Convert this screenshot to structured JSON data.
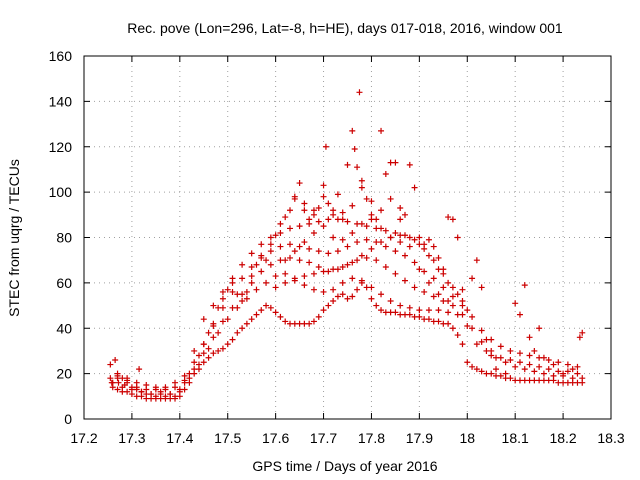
{
  "chart_data": {
    "type": "scatter",
    "title": "Rec. pove (Lon=296, Lat=-8, h=HE), days 017-018, 2016, window 001",
    "xlabel": "GPS time / Days of year 2016",
    "ylabel": "STEC from uqrg / TECUs",
    "xlim": [
      17.2,
      18.3
    ],
    "ylim": [
      0,
      160
    ],
    "xticks": [
      "17.2",
      "17.3",
      "17.4",
      "17.5",
      "17.6",
      "17.7",
      "17.8",
      "17.9",
      "18",
      "18.1",
      "18.2",
      "18.3"
    ],
    "xtick_values": [
      17.2,
      17.3,
      17.4,
      17.5,
      17.6,
      17.7,
      17.8,
      17.9,
      18.0,
      18.1,
      18.2,
      18.3
    ],
    "yticks": [
      "0",
      "20",
      "40",
      "60",
      "80",
      "100",
      "120",
      "140",
      "160"
    ],
    "ytick_values": [
      0,
      20,
      40,
      60,
      80,
      100,
      120,
      140,
      160
    ],
    "grid": true,
    "marker": "plus",
    "color": "#cc0000",
    "points": [
      [
        17.255,
        24
      ],
      [
        17.255,
        18
      ],
      [
        17.258,
        16
      ],
      [
        17.265,
        26
      ],
      [
        17.27,
        19
      ],
      [
        17.272,
        16
      ],
      [
        17.28,
        18
      ],
      [
        17.285,
        15
      ],
      [
        17.29,
        17
      ],
      [
        17.3,
        14
      ],
      [
        17.31,
        13
      ],
      [
        17.315,
        22
      ],
      [
        17.32,
        12
      ],
      [
        17.33,
        11
      ],
      [
        17.34,
        11
      ],
      [
        17.35,
        10
      ],
      [
        17.36,
        12
      ],
      [
        17.37,
        10
      ],
      [
        17.38,
        11
      ],
      [
        17.39,
        10
      ],
      [
        17.4,
        12
      ],
      [
        17.41,
        16
      ],
      [
        17.42,
        20
      ],
      [
        17.43,
        30
      ],
      [
        17.44,
        28
      ],
      [
        17.45,
        33
      ],
      [
        17.46,
        38
      ],
      [
        17.47,
        42
      ],
      [
        17.48,
        49
      ],
      [
        17.49,
        53
      ],
      [
        17.5,
        57
      ],
      [
        17.51,
        60
      ],
      [
        17.52,
        55
      ],
      [
        17.53,
        52
      ],
      [
        17.54,
        56
      ],
      [
        17.55,
        63
      ],
      [
        17.56,
        68
      ],
      [
        17.57,
        72
      ],
      [
        17.58,
        70
      ],
      [
        17.59,
        77
      ],
      [
        17.6,
        81
      ],
      [
        17.61,
        86
      ],
      [
        17.62,
        89
      ],
      [
        17.63,
        92
      ],
      [
        17.64,
        97
      ],
      [
        17.65,
        104
      ],
      [
        17.66,
        92
      ],
      [
        17.67,
        88
      ],
      [
        17.68,
        90
      ],
      [
        17.69,
        93
      ],
      [
        17.7,
        103
      ],
      [
        17.705,
        120
      ],
      [
        17.71,
        95
      ],
      [
        17.72,
        92
      ],
      [
        17.73,
        99
      ],
      [
        17.74,
        91
      ],
      [
        17.75,
        112
      ],
      [
        17.76,
        127
      ],
      [
        17.765,
        119
      ],
      [
        17.77,
        111
      ],
      [
        17.775,
        144
      ],
      [
        17.78,
        105
      ],
      [
        17.79,
        97
      ],
      [
        17.8,
        90
      ],
      [
        17.81,
        88
      ],
      [
        17.82,
        127
      ],
      [
        17.83,
        108
      ],
      [
        17.84,
        113
      ],
      [
        17.85,
        113
      ],
      [
        17.86,
        93
      ],
      [
        17.87,
        90
      ],
      [
        17.88,
        112
      ],
      [
        17.89,
        102
      ],
      [
        17.9,
        80
      ],
      [
        17.91,
        77
      ],
      [
        17.92,
        79
      ],
      [
        17.93,
        76
      ],
      [
        17.94,
        71
      ],
      [
        17.95,
        66
      ],
      [
        17.96,
        89
      ],
      [
        17.97,
        88
      ],
      [
        17.98,
        80
      ],
      [
        17.99,
        57
      ],
      [
        18.0,
        48
      ],
      [
        18.01,
        62
      ],
      [
        18.02,
        70
      ],
      [
        18.03,
        58
      ],
      [
        18.04,
        35
      ],
      [
        18.05,
        28
      ],
      [
        18.06,
        22
      ],
      [
        18.08,
        20
      ],
      [
        18.1,
        51
      ],
      [
        18.11,
        46
      ],
      [
        18.12,
        59
      ],
      [
        18.13,
        36
      ],
      [
        18.14,
        30
      ],
      [
        18.15,
        40
      ],
      [
        18.16,
        27
      ],
      [
        18.18,
        24
      ],
      [
        18.2,
        20
      ],
      [
        18.22,
        22
      ],
      [
        18.235,
        36
      ],
      [
        18.24,
        38
      ],
      [
        17.26,
        14
      ],
      [
        17.27,
        13
      ],
      [
        17.28,
        12
      ],
      [
        17.29,
        12
      ],
      [
        17.3,
        11
      ],
      [
        17.31,
        10
      ],
      [
        17.32,
        10
      ],
      [
        17.33,
        9
      ],
      [
        17.34,
        9
      ],
      [
        17.35,
        9
      ],
      [
        17.36,
        9
      ],
      [
        17.37,
        9
      ],
      [
        17.38,
        9
      ],
      [
        17.39,
        9
      ],
      [
        17.4,
        10
      ],
      [
        17.41,
        13
      ],
      [
        17.42,
        16
      ],
      [
        17.43,
        20
      ],
      [
        17.44,
        22
      ],
      [
        17.45,
        25
      ],
      [
        17.46,
        27
      ],
      [
        17.47,
        29
      ],
      [
        17.48,
        30
      ],
      [
        17.49,
        31
      ],
      [
        17.5,
        33
      ],
      [
        17.51,
        35
      ],
      [
        17.52,
        38
      ],
      [
        17.53,
        40
      ],
      [
        17.54,
        42
      ],
      [
        17.55,
        44
      ],
      [
        17.56,
        46
      ],
      [
        17.57,
        48
      ],
      [
        17.58,
        50
      ],
      [
        17.59,
        49
      ],
      [
        17.6,
        47
      ],
      [
        17.61,
        45
      ],
      [
        17.62,
        43
      ],
      [
        17.63,
        42
      ],
      [
        17.64,
        42
      ],
      [
        17.65,
        42
      ],
      [
        17.66,
        42
      ],
      [
        17.67,
        42
      ],
      [
        17.68,
        43
      ],
      [
        17.69,
        45
      ],
      [
        17.7,
        48
      ],
      [
        17.71,
        50
      ],
      [
        17.72,
        52
      ],
      [
        17.73,
        54
      ],
      [
        17.74,
        55
      ],
      [
        17.75,
        53
      ],
      [
        17.76,
        54
      ],
      [
        17.77,
        57
      ],
      [
        17.78,
        60
      ],
      [
        17.79,
        58
      ],
      [
        17.8,
        53
      ],
      [
        17.81,
        50
      ],
      [
        17.82,
        48
      ],
      [
        17.83,
        47
      ],
      [
        17.84,
        47
      ],
      [
        17.85,
        47
      ],
      [
        17.86,
        46
      ],
      [
        17.87,
        46
      ],
      [
        17.88,
        46
      ],
      [
        17.89,
        45
      ],
      [
        17.9,
        45
      ],
      [
        17.91,
        44
      ],
      [
        17.92,
        44
      ],
      [
        17.93,
        43
      ],
      [
        17.94,
        43
      ],
      [
        17.95,
        42
      ],
      [
        17.96,
        42
      ],
      [
        17.97,
        40
      ],
      [
        17.98,
        37
      ],
      [
        17.99,
        33
      ],
      [
        18.0,
        25
      ],
      [
        18.01,
        23
      ],
      [
        18.02,
        22
      ],
      [
        18.03,
        21
      ],
      [
        18.04,
        20
      ],
      [
        18.05,
        20
      ],
      [
        18.06,
        19
      ],
      [
        18.07,
        19
      ],
      [
        18.08,
        18
      ],
      [
        18.09,
        18
      ],
      [
        18.1,
        17
      ],
      [
        18.11,
        17
      ],
      [
        18.12,
        17
      ],
      [
        18.13,
        17
      ],
      [
        18.14,
        17
      ],
      [
        18.15,
        17
      ],
      [
        18.16,
        17
      ],
      [
        18.17,
        17
      ],
      [
        18.18,
        17
      ],
      [
        18.19,
        16
      ],
      [
        18.2,
        16
      ],
      [
        18.21,
        16
      ],
      [
        18.22,
        16
      ],
      [
        18.23,
        16
      ],
      [
        18.24,
        16
      ],
      [
        17.26,
        16
      ],
      [
        17.28,
        14
      ],
      [
        17.3,
        13
      ],
      [
        17.32,
        12
      ],
      [
        17.34,
        11
      ],
      [
        17.36,
        11
      ],
      [
        17.38,
        11
      ],
      [
        17.4,
        13
      ],
      [
        17.42,
        18
      ],
      [
        17.44,
        24
      ],
      [
        17.46,
        31
      ],
      [
        17.48,
        38
      ],
      [
        17.5,
        44
      ],
      [
        17.52,
        49
      ],
      [
        17.54,
        53
      ],
      [
        17.56,
        57
      ],
      [
        17.58,
        60
      ],
      [
        17.6,
        63
      ],
      [
        17.62,
        64
      ],
      [
        17.64,
        61
      ],
      [
        17.66,
        59
      ],
      [
        17.68,
        57
      ],
      [
        17.7,
        56
      ],
      [
        17.72,
        57
      ],
      [
        17.74,
        60
      ],
      [
        17.76,
        62
      ],
      [
        17.78,
        61
      ],
      [
        17.8,
        58
      ],
      [
        17.82,
        55
      ],
      [
        17.84,
        52
      ],
      [
        17.86,
        50
      ],
      [
        17.88,
        49
      ],
      [
        17.9,
        48
      ],
      [
        17.92,
        48
      ],
      [
        17.94,
        48
      ],
      [
        17.96,
        47
      ],
      [
        17.98,
        46
      ],
      [
        18.0,
        41
      ],
      [
        18.02,
        33
      ],
      [
        18.04,
        30
      ],
      [
        18.06,
        27
      ],
      [
        18.08,
        25
      ],
      [
        18.1,
        23
      ],
      [
        18.12,
        22
      ],
      [
        18.14,
        21
      ],
      [
        18.16,
        20
      ],
      [
        18.18,
        19
      ],
      [
        18.2,
        19
      ],
      [
        18.22,
        18
      ],
      [
        18.24,
        18
      ],
      [
        17.27,
        18
      ],
      [
        17.29,
        16
      ],
      [
        17.31,
        14
      ],
      [
        17.33,
        13
      ],
      [
        17.35,
        13
      ],
      [
        17.37,
        13
      ],
      [
        17.39,
        14
      ],
      [
        17.41,
        17
      ],
      [
        17.43,
        22
      ],
      [
        17.45,
        29
      ],
      [
        17.47,
        36
      ],
      [
        17.49,
        43
      ],
      [
        17.51,
        49
      ],
      [
        17.53,
        55
      ],
      [
        17.55,
        60
      ],
      [
        17.57,
        65
      ],
      [
        17.59,
        68
      ],
      [
        17.61,
        70
      ],
      [
        17.63,
        71
      ],
      [
        17.65,
        70
      ],
      [
        17.67,
        69
      ],
      [
        17.69,
        67
      ],
      [
        17.71,
        65
      ],
      [
        17.73,
        66
      ],
      [
        17.75,
        68
      ],
      [
        17.77,
        70
      ],
      [
        17.79,
        71
      ],
      [
        17.81,
        70
      ],
      [
        17.83,
        67
      ],
      [
        17.85,
        64
      ],
      [
        17.87,
        61
      ],
      [
        17.89,
        58
      ],
      [
        17.91,
        56
      ],
      [
        17.93,
        54
      ],
      [
        17.95,
        52
      ],
      [
        17.97,
        50
      ],
      [
        17.99,
        46
      ],
      [
        18.01,
        40
      ],
      [
        18.03,
        34
      ],
      [
        18.05,
        30
      ],
      [
        18.07,
        27
      ],
      [
        18.09,
        26
      ],
      [
        18.11,
        25
      ],
      [
        18.13,
        24
      ],
      [
        18.15,
        23
      ],
      [
        18.17,
        22
      ],
      [
        18.19,
        21
      ],
      [
        18.21,
        21
      ],
      [
        18.23,
        20
      ],
      [
        17.27,
        20
      ],
      [
        17.29,
        18
      ],
      [
        17.31,
        16
      ],
      [
        17.33,
        15
      ],
      [
        17.35,
        14
      ],
      [
        17.37,
        14
      ],
      [
        17.39,
        16
      ],
      [
        17.41,
        19
      ],
      [
        17.43,
        25
      ],
      [
        17.45,
        33
      ],
      [
        17.47,
        41
      ],
      [
        17.49,
        49
      ],
      [
        17.51,
        56
      ],
      [
        17.53,
        62
      ],
      [
        17.55,
        67
      ],
      [
        17.57,
        71
      ],
      [
        17.59,
        74
      ],
      [
        17.61,
        76
      ],
      [
        17.63,
        77
      ],
      [
        17.65,
        76
      ],
      [
        17.67,
        75
      ],
      [
        17.69,
        74
      ],
      [
        17.71,
        73
      ],
      [
        17.73,
        74
      ],
      [
        17.75,
        76
      ],
      [
        17.77,
        78
      ],
      [
        17.79,
        79
      ],
      [
        17.81,
        78
      ],
      [
        17.83,
        76
      ],
      [
        17.85,
        74
      ],
      [
        17.87,
        72
      ],
      [
        17.89,
        69
      ],
      [
        17.91,
        65
      ],
      [
        17.93,
        62
      ],
      [
        17.95,
        58
      ],
      [
        17.97,
        54
      ],
      [
        17.99,
        50
      ],
      [
        18.01,
        45
      ],
      [
        18.03,
        39
      ],
      [
        18.05,
        35
      ],
      [
        18.07,
        32
      ],
      [
        18.09,
        30
      ],
      [
        18.11,
        29
      ],
      [
        18.13,
        28
      ],
      [
        18.15,
        27
      ],
      [
        18.17,
        26
      ],
      [
        18.19,
        25
      ],
      [
        18.21,
        24
      ],
      [
        18.23,
        23
      ],
      [
        17.45,
        44
      ],
      [
        17.47,
        50
      ],
      [
        17.49,
        56
      ],
      [
        17.51,
        62
      ],
      [
        17.53,
        68
      ],
      [
        17.55,
        73
      ],
      [
        17.57,
        77
      ],
      [
        17.59,
        80
      ],
      [
        17.61,
        82
      ],
      [
        17.63,
        84
      ],
      [
        17.65,
        85
      ],
      [
        17.67,
        86
      ],
      [
        17.69,
        87
      ],
      [
        17.71,
        88
      ],
      [
        17.73,
        88
      ],
      [
        17.75,
        87
      ],
      [
        17.77,
        86
      ],
      [
        17.79,
        85
      ],
      [
        17.81,
        84
      ],
      [
        17.83,
        83
      ],
      [
        17.85,
        82
      ],
      [
        17.87,
        81
      ],
      [
        17.89,
        79
      ],
      [
        17.91,
        75
      ],
      [
        17.93,
        70
      ],
      [
        17.95,
        64
      ],
      [
        17.97,
        58
      ],
      [
        17.99,
        52
      ],
      [
        17.6,
        58
      ],
      [
        17.62,
        60
      ],
      [
        17.64,
        62
      ],
      [
        17.66,
        63
      ],
      [
        17.68,
        64
      ],
      [
        17.7,
        65
      ],
      [
        17.72,
        66
      ],
      [
        17.74,
        67
      ],
      [
        17.76,
        69
      ],
      [
        17.78,
        72
      ],
      [
        17.8,
        75
      ],
      [
        17.82,
        78
      ],
      [
        17.84,
        80
      ],
      [
        17.86,
        81
      ],
      [
        17.88,
        80
      ],
      [
        17.9,
        77
      ],
      [
        17.92,
        72
      ],
      [
        17.94,
        66
      ],
      [
        17.96,
        60
      ],
      [
        17.98,
        55
      ],
      [
        17.62,
        70
      ],
      [
        17.64,
        74
      ],
      [
        17.66,
        78
      ],
      [
        17.68,
        82
      ],
      [
        17.7,
        85
      ],
      [
        17.72,
        80
      ],
      [
        17.74,
        79
      ],
      [
        17.76,
        82
      ],
      [
        17.78,
        86
      ],
      [
        17.8,
        88
      ],
      [
        17.82,
        84
      ],
      [
        17.84,
        80
      ],
      [
        17.86,
        78
      ],
      [
        17.88,
        76
      ],
      [
        17.9,
        66
      ],
      [
        17.92,
        60
      ],
      [
        17.94,
        55
      ],
      [
        17.96,
        52
      ],
      [
        17.64,
        98
      ],
      [
        17.66,
        95
      ],
      [
        17.68,
        92
      ],
      [
        17.7,
        98
      ],
      [
        17.72,
        90
      ],
      [
        17.74,
        88
      ],
      [
        17.76,
        94
      ],
      [
        17.78,
        102
      ],
      [
        17.8,
        96
      ],
      [
        17.82,
        92
      ],
      [
        17.84,
        97
      ],
      [
        17.86,
        88
      ]
    ]
  }
}
